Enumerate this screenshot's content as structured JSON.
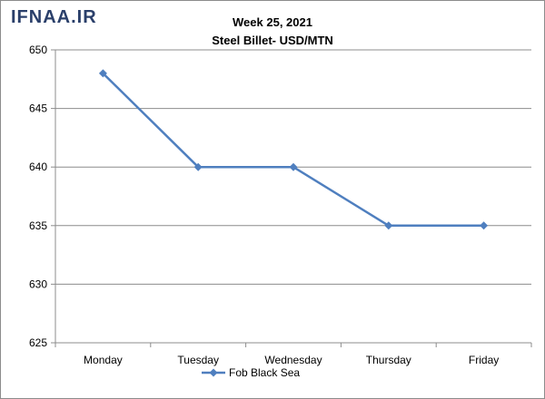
{
  "watermark": "IFNAA.IR",
  "chart_data": {
    "type": "line",
    "title": "Week 25, 2021",
    "subtitle": "Steel Billet- USD/MTN",
    "xlabel": "",
    "ylabel": "",
    "categories": [
      "Monday",
      "Tuesday",
      "Wednesday",
      "Thursday",
      "Friday"
    ],
    "series": [
      {
        "name": "Fob Black Sea",
        "values": [
          648,
          640,
          640,
          635,
          635
        ],
        "color": "#4f7fbf"
      }
    ],
    "ylim": [
      625,
      650
    ],
    "yticks": [
      625,
      630,
      635,
      640,
      645,
      650
    ],
    "grid": true,
    "legend": "bottom-center"
  }
}
